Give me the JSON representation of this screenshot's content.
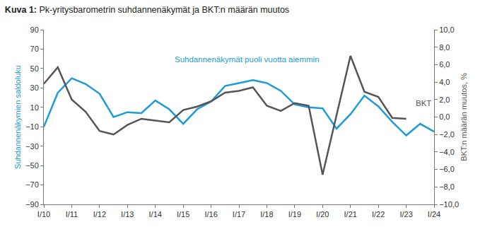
{
  "chart_data": {
    "type": "line",
    "title": "Kuva 1: Pk-yritysbarometrin suhdannenäkymät ja BKT:n määrän muutos",
    "y_label": "Suhdannenäkymien saldoluku",
    "y2_label": "BKT:n määrän muutos, %",
    "categories": [
      "I/10",
      null,
      "I/11",
      null,
      "I/12",
      null,
      "I/13",
      null,
      "I/14",
      null,
      "I/15",
      null,
      "I/16",
      null,
      "I/17",
      null,
      "I/18",
      null,
      "I/19",
      null,
      "I/20",
      null,
      "I/21",
      null,
      "I/22",
      null,
      "I/23",
      null,
      "I/24"
    ],
    "series": [
      {
        "name": "Suhdannenäkymät puoli vuotta aiemmin",
        "color": "#1e9cd7",
        "axis": "y",
        "values": [
          -10,
          25,
          40,
          34,
          24,
          0,
          5,
          4,
          17,
          8,
          -7,
          8,
          16,
          32,
          35,
          38,
          35,
          27,
          13,
          10,
          9,
          -12,
          3,
          22,
          11,
          -5,
          -19,
          -7,
          -15
        ]
      },
      {
        "name": "BKT",
        "color": "#555555",
        "axis": "y2",
        "values": [
          3.8,
          5.7,
          2.0,
          0.6,
          -1.6,
          -2.0,
          -0.9,
          -0.2,
          -0.4,
          -0.6,
          0.8,
          1.2,
          1.8,
          2.8,
          3.0,
          3.4,
          1.3,
          0.7,
          1.6,
          1.3,
          -6.6,
          0.3,
          7.0,
          2.9,
          2.3,
          -0.1,
          -0.2,
          null,
          null
        ]
      }
    ],
    "ylim": [
      -90,
      90
    ],
    "yticks": [
      {
        "value": -90,
        "label": "−90"
      },
      {
        "value": -70,
        "label": "−70"
      },
      {
        "value": -50,
        "label": "−50"
      },
      {
        "value": -30,
        "label": "−30"
      },
      {
        "value": -10,
        "label": "−10"
      },
      10,
      30,
      50,
      70,
      90
    ],
    "y2lim": [
      -10,
      10
    ],
    "y2ticks": [
      {
        "value": -10,
        "label": "−10,0"
      },
      {
        "value": -8,
        "label": "−8,0"
      },
      {
        "value": -6,
        "label": "−6,0"
      },
      {
        "value": -4,
        "label": "−4,0"
      },
      {
        "value": -2,
        "label": "−2,0"
      },
      {
        "value": 0,
        "label": "0,0"
      },
      {
        "value": 2,
        "label": "2,0"
      },
      {
        "value": 4,
        "label": "4,0"
      },
      {
        "value": 6,
        "label": "6,0"
      },
      {
        "value": 8,
        "label": "8,0"
      },
      {
        "value": 10,
        "label": "10,0"
      }
    ],
    "grid": false
  }
}
